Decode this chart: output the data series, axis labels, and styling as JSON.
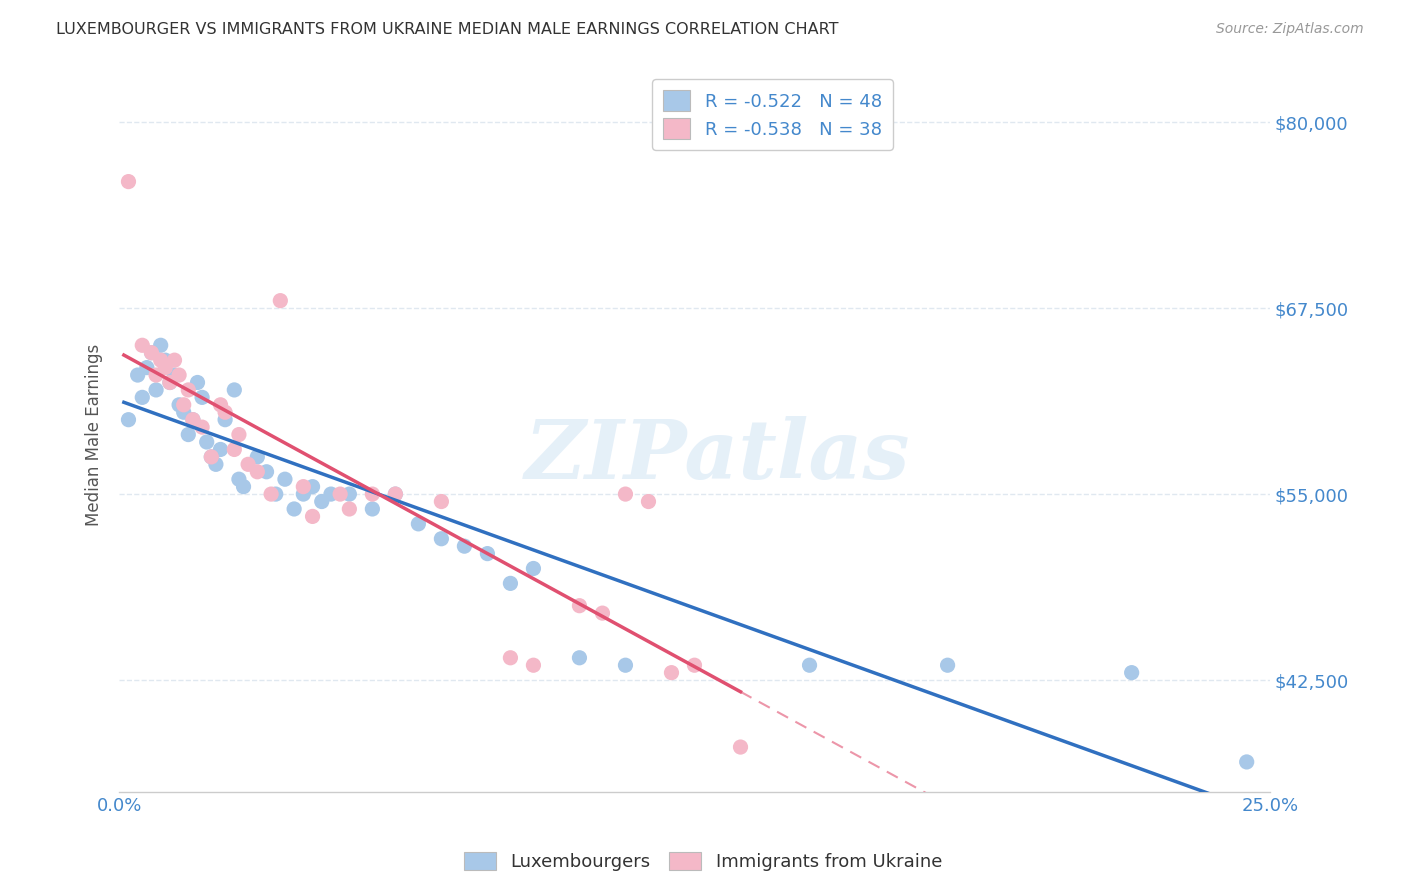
{
  "title": "LUXEMBOURGER VS IMMIGRANTS FROM UKRAINE MEDIAN MALE EARNINGS CORRELATION CHART",
  "source": "Source: ZipAtlas.com",
  "ylabel": "Median Male Earnings",
  "xlim": [
    0.0,
    0.25
  ],
  "ylim": [
    35000,
    83000
  ],
  "yticks": [
    42500,
    55000,
    67500,
    80000
  ],
  "xticks": [
    0.0,
    0.025,
    0.05,
    0.075,
    0.1,
    0.125,
    0.15,
    0.175,
    0.2,
    0.225,
    0.25
  ],
  "xtick_labels_show": [
    "0.0%",
    "25.0%"
  ],
  "ytick_labels": [
    "$42,500",
    "$55,000",
    "$67,500",
    "$80,000"
  ],
  "blue_color": "#a8c8e8",
  "pink_color": "#f4b8c8",
  "blue_line_color": "#3070c0",
  "pink_line_color": "#e05070",
  "axis_color": "#4488cc",
  "grid_color": "#e0e8f0",
  "watermark": "ZIPatlas",
  "legend_R_blue": "-0.522",
  "legend_N_blue": "48",
  "legend_R_pink": "-0.538",
  "legend_N_pink": "38",
  "legend_label_blue": "Luxembourgers",
  "legend_label_pink": "Immigrants from Ukraine",
  "blue_scatter_x": [
    0.002,
    0.004,
    0.005,
    0.006,
    0.007,
    0.008,
    0.009,
    0.01,
    0.011,
    0.012,
    0.013,
    0.014,
    0.015,
    0.016,
    0.017,
    0.018,
    0.019,
    0.02,
    0.021,
    0.022,
    0.023,
    0.025,
    0.026,
    0.027,
    0.03,
    0.032,
    0.034,
    0.036,
    0.038,
    0.04,
    0.042,
    0.044,
    0.046,
    0.05,
    0.055,
    0.06,
    0.065,
    0.07,
    0.075,
    0.08,
    0.085,
    0.09,
    0.1,
    0.11,
    0.15,
    0.18,
    0.22,
    0.245
  ],
  "blue_scatter_y": [
    60000,
    63000,
    61500,
    63500,
    64500,
    62000,
    65000,
    64000,
    62500,
    63000,
    61000,
    60500,
    59000,
    60000,
    62500,
    61500,
    58500,
    57500,
    57000,
    58000,
    60000,
    62000,
    56000,
    55500,
    57500,
    56500,
    55000,
    56000,
    54000,
    55000,
    55500,
    54500,
    55000,
    55000,
    54000,
    55000,
    53000,
    52000,
    51500,
    51000,
    49000,
    50000,
    44000,
    43500,
    43500,
    43500,
    43000,
    37000
  ],
  "pink_scatter_x": [
    0.002,
    0.005,
    0.007,
    0.008,
    0.009,
    0.01,
    0.011,
    0.012,
    0.013,
    0.014,
    0.015,
    0.016,
    0.018,
    0.02,
    0.022,
    0.023,
    0.025,
    0.026,
    0.028,
    0.03,
    0.033,
    0.035,
    0.04,
    0.042,
    0.048,
    0.05,
    0.055,
    0.06,
    0.07,
    0.085,
    0.09,
    0.1,
    0.105,
    0.11,
    0.115,
    0.12,
    0.125,
    0.135
  ],
  "pink_scatter_y": [
    76000,
    65000,
    64500,
    63000,
    64000,
    63500,
    62500,
    64000,
    63000,
    61000,
    62000,
    60000,
    59500,
    57500,
    61000,
    60500,
    58000,
    59000,
    57000,
    56500,
    55000,
    68000,
    55500,
    53500,
    55000,
    54000,
    55000,
    55000,
    54500,
    44000,
    43500,
    47500,
    47000,
    55000,
    54500,
    43000,
    43500,
    38000
  ]
}
